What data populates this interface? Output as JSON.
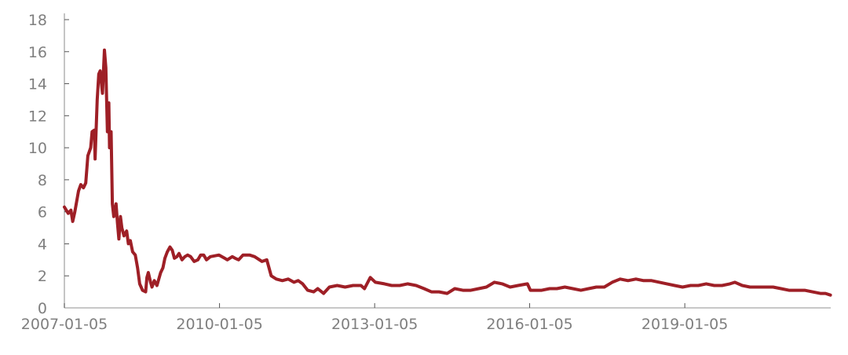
{
  "chart_data": {
    "type": "line",
    "title": "",
    "xlabel": "",
    "ylabel": "",
    "ylim": [
      0,
      18
    ],
    "yticks": [
      "0",
      "2",
      "4",
      "6",
      "8",
      "10",
      "12",
      "14",
      "16",
      "18"
    ],
    "xlim": [
      "2007-01-05",
      "2021-11-01"
    ],
    "xticks": [
      "2007-01-05",
      "2010-01-05",
      "2013-01-05",
      "2016-01-05",
      "2019-01-05"
    ],
    "grid": false,
    "legend": "none",
    "colors": {
      "line": "#9e1f26",
      "axis": "#a6a6a6",
      "tick_label": "#7f7f7f"
    },
    "series": [
      {
        "points": [
          [
            "2007-01-05",
            6.3
          ],
          [
            "2007-02-01",
            5.9
          ],
          [
            "2007-02-20",
            6.1
          ],
          [
            "2007-03-05",
            5.4
          ],
          [
            "2007-03-20",
            6.0
          ],
          [
            "2007-04-15",
            7.3
          ],
          [
            "2007-05-01",
            7.7
          ],
          [
            "2007-05-20",
            7.5
          ],
          [
            "2007-06-05",
            7.8
          ],
          [
            "2007-06-20",
            9.5
          ],
          [
            "2007-07-10",
            10.0
          ],
          [
            "2007-07-20",
            11.0
          ],
          [
            "2007-08-05",
            11.1
          ],
          [
            "2007-08-10",
            9.3
          ],
          [
            "2007-08-25",
            13.0
          ],
          [
            "2007-09-05",
            14.6
          ],
          [
            "2007-09-15",
            14.8
          ],
          [
            "2007-10-01",
            13.4
          ],
          [
            "2007-10-15",
            16.1
          ],
          [
            "2007-10-25",
            15.0
          ],
          [
            "2007-11-05",
            11.0
          ],
          [
            "2007-11-15",
            12.8
          ],
          [
            "2007-11-20",
            10.0
          ],
          [
            "2007-12-01",
            11.0
          ],
          [
            "2007-12-10",
            6.5
          ],
          [
            "2007-12-20",
            5.7
          ],
          [
            "2008-01-05",
            6.5
          ],
          [
            "2008-01-15",
            5.3
          ],
          [
            "2008-01-25",
            4.3
          ],
          [
            "2008-02-05",
            5.7
          ],
          [
            "2008-02-15",
            5.0
          ],
          [
            "2008-03-01",
            4.5
          ],
          [
            "2008-03-20",
            4.8
          ],
          [
            "2008-04-01",
            4.0
          ],
          [
            "2008-04-15",
            4.2
          ],
          [
            "2008-05-01",
            3.5
          ],
          [
            "2008-05-20",
            3.3
          ],
          [
            "2008-06-05",
            2.5
          ],
          [
            "2008-06-20",
            1.5
          ],
          [
            "2008-07-10",
            1.1
          ],
          [
            "2008-08-01",
            1.0
          ],
          [
            "2008-08-10",
            1.9
          ],
          [
            "2008-08-20",
            2.2
          ],
          [
            "2008-09-05",
            1.6
          ],
          [
            "2008-09-15",
            1.3
          ],
          [
            "2008-10-01",
            1.7
          ],
          [
            "2008-10-20",
            1.4
          ],
          [
            "2008-11-15",
            2.2
          ],
          [
            "2008-12-01",
            2.5
          ],
          [
            "2008-12-15",
            3.1
          ],
          [
            "2009-01-01",
            3.5
          ],
          [
            "2009-01-20",
            3.8
          ],
          [
            "2009-02-05",
            3.6
          ],
          [
            "2009-02-20",
            3.1
          ],
          [
            "2009-03-10",
            3.2
          ],
          [
            "2009-03-25",
            3.4
          ],
          [
            "2009-04-15",
            3.0
          ],
          [
            "2009-05-05",
            3.2
          ],
          [
            "2009-05-25",
            3.3
          ],
          [
            "2009-06-15",
            3.2
          ],
          [
            "2009-07-10",
            2.9
          ],
          [
            "2009-08-05",
            3.0
          ],
          [
            "2009-08-25",
            3.3
          ],
          [
            "2009-09-15",
            3.3
          ],
          [
            "2009-10-05",
            3.0
          ],
          [
            "2009-11-01",
            3.2
          ],
          [
            "2010-01-01",
            3.3
          ],
          [
            "2010-02-10",
            3.1
          ],
          [
            "2010-03-01",
            3.0
          ],
          [
            "2010-04-05",
            3.2
          ],
          [
            "2010-04-25",
            3.1
          ],
          [
            "2010-05-20",
            3.0
          ],
          [
            "2010-06-20",
            3.3
          ],
          [
            "2010-08-05",
            3.3
          ],
          [
            "2010-09-10",
            3.2
          ],
          [
            "2010-11-01",
            2.9
          ],
          [
            "2010-12-05",
            3.0
          ],
          [
            "2011-01-05",
            2.0
          ],
          [
            "2011-02-10",
            1.8
          ],
          [
            "2011-03-25",
            1.7
          ],
          [
            "2011-05-05",
            1.8
          ],
          [
            "2011-06-15",
            1.6
          ],
          [
            "2011-07-15",
            1.7
          ],
          [
            "2011-08-15",
            1.5
          ],
          [
            "2011-09-20",
            1.1
          ],
          [
            "2011-11-01",
            1.0
          ],
          [
            "2011-11-30",
            1.2
          ],
          [
            "2012-01-10",
            0.9
          ],
          [
            "2012-02-20",
            1.3
          ],
          [
            "2012-04-15",
            1.4
          ],
          [
            "2012-06-10",
            1.3
          ],
          [
            "2012-08-05",
            1.4
          ],
          [
            "2012-09-30",
            1.4
          ],
          [
            "2012-10-25",
            1.2
          ],
          [
            "2012-12-05",
            1.9
          ],
          [
            "2013-01-10",
            1.6
          ],
          [
            "2013-03-15",
            1.5
          ],
          [
            "2013-05-05",
            1.4
          ],
          [
            "2013-07-01",
            1.4
          ],
          [
            "2013-08-25",
            1.5
          ],
          [
            "2013-10-25",
            1.4
          ],
          [
            "2013-12-20",
            1.2
          ],
          [
            "2014-02-10",
            1.0
          ],
          [
            "2014-04-05",
            1.0
          ],
          [
            "2014-06-01",
            0.9
          ],
          [
            "2014-07-25",
            1.2
          ],
          [
            "2014-09-20",
            1.1
          ],
          [
            "2014-11-15",
            1.1
          ],
          [
            "2015-01-10",
            1.2
          ],
          [
            "2015-03-05",
            1.3
          ],
          [
            "2015-05-01",
            1.6
          ],
          [
            "2015-06-25",
            1.5
          ],
          [
            "2015-08-20",
            1.3
          ],
          [
            "2015-10-15",
            1.4
          ],
          [
            "2015-12-20",
            1.5
          ],
          [
            "2016-01-10",
            1.1
          ],
          [
            "2016-03-30",
            1.1
          ],
          [
            "2016-05-25",
            1.2
          ],
          [
            "2016-07-15",
            1.2
          ],
          [
            "2016-09-10",
            1.3
          ],
          [
            "2016-11-05",
            1.2
          ],
          [
            "2017-01-01",
            1.1
          ],
          [
            "2017-02-25",
            1.2
          ],
          [
            "2017-04-20",
            1.3
          ],
          [
            "2017-06-15",
            1.3
          ],
          [
            "2017-08-10",
            1.6
          ],
          [
            "2017-10-05",
            1.8
          ],
          [
            "2017-11-30",
            1.7
          ],
          [
            "2018-01-25",
            1.8
          ],
          [
            "2018-03-20",
            1.7
          ],
          [
            "2018-05-15",
            1.7
          ],
          [
            "2018-07-10",
            1.6
          ],
          [
            "2018-09-01",
            1.5
          ],
          [
            "2018-10-25",
            1.4
          ],
          [
            "2018-12-20",
            1.3
          ],
          [
            "2019-02-15",
            1.4
          ],
          [
            "2019-04-10",
            1.4
          ],
          [
            "2019-06-05",
            1.5
          ],
          [
            "2019-08-01",
            1.4
          ],
          [
            "2019-09-25",
            1.4
          ],
          [
            "2019-11-20",
            1.5
          ],
          [
            "2019-12-25",
            1.6
          ],
          [
            "2020-02-15",
            1.4
          ],
          [
            "2020-04-10",
            1.3
          ],
          [
            "2020-06-01",
            1.3
          ],
          [
            "2020-07-25",
            1.3
          ],
          [
            "2020-09-20",
            1.3
          ],
          [
            "2020-11-15",
            1.2
          ],
          [
            "2021-01-10",
            1.1
          ],
          [
            "2021-03-05",
            1.1
          ],
          [
            "2021-05-01",
            1.1
          ],
          [
            "2021-06-25",
            1.0
          ],
          [
            "2021-08-20",
            0.9
          ],
          [
            "2021-09-25",
            0.9
          ],
          [
            "2021-10-30",
            0.8
          ]
        ]
      }
    ]
  }
}
